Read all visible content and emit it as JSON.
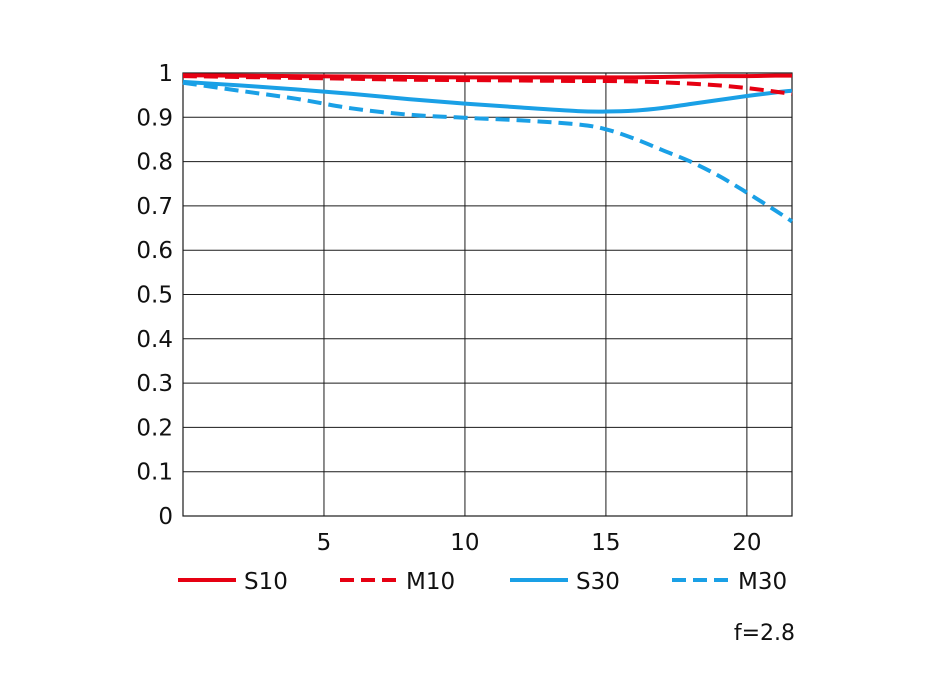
{
  "chart_data": {
    "type": "line",
    "xlim": [
      0,
      21.6
    ],
    "ylim": [
      0,
      1
    ],
    "x_ticks": [
      5,
      10,
      15,
      20
    ],
    "x_tick_labels": [
      "5",
      "10",
      "15",
      "20"
    ],
    "y_ticks": [
      0,
      0.1,
      0.2,
      0.3,
      0.4,
      0.5,
      0.6,
      0.7,
      0.8,
      0.9,
      1
    ],
    "y_tick_labels": [
      "0",
      "0.1",
      "0.2",
      "0.3",
      "0.4",
      "0.5",
      "0.6",
      "0.7",
      "0.8",
      "0.9",
      "1"
    ],
    "grid": true,
    "legend_position": "bottom",
    "note": "f=2.8",
    "x": [
      0,
      2,
      4,
      6,
      8,
      10,
      12,
      14,
      15,
      16,
      17,
      18,
      19,
      20,
      21,
      21.6
    ],
    "series": [
      {
        "name": "S10",
        "color": "#e60012",
        "style": "solid",
        "values": [
          0.995,
          0.994,
          0.993,
          0.992,
          0.991,
          0.99,
          0.99,
          0.99,
          0.99,
          0.99,
          0.991,
          0.992,
          0.993,
          0.993,
          0.994,
          0.994
        ]
      },
      {
        "name": "M10",
        "color": "#e60012",
        "style": "dashed",
        "values": [
          0.993,
          0.991,
          0.989,
          0.987,
          0.985,
          0.984,
          0.983,
          0.982,
          0.982,
          0.981,
          0.979,
          0.976,
          0.972,
          0.966,
          0.958,
          0.953
        ]
      },
      {
        "name": "S30",
        "color": "#1aa0e6",
        "style": "solid",
        "values": [
          0.98,
          0.972,
          0.963,
          0.953,
          0.941,
          0.931,
          0.922,
          0.914,
          0.913,
          0.915,
          0.921,
          0.93,
          0.939,
          0.948,
          0.956,
          0.96
        ]
      },
      {
        "name": "M30",
        "color": "#1aa0e6",
        "style": "dashed",
        "values": [
          0.978,
          0.96,
          0.942,
          0.92,
          0.906,
          0.899,
          0.893,
          0.884,
          0.873,
          0.852,
          0.826,
          0.8,
          0.768,
          0.73,
          0.69,
          0.665
        ]
      }
    ]
  }
}
